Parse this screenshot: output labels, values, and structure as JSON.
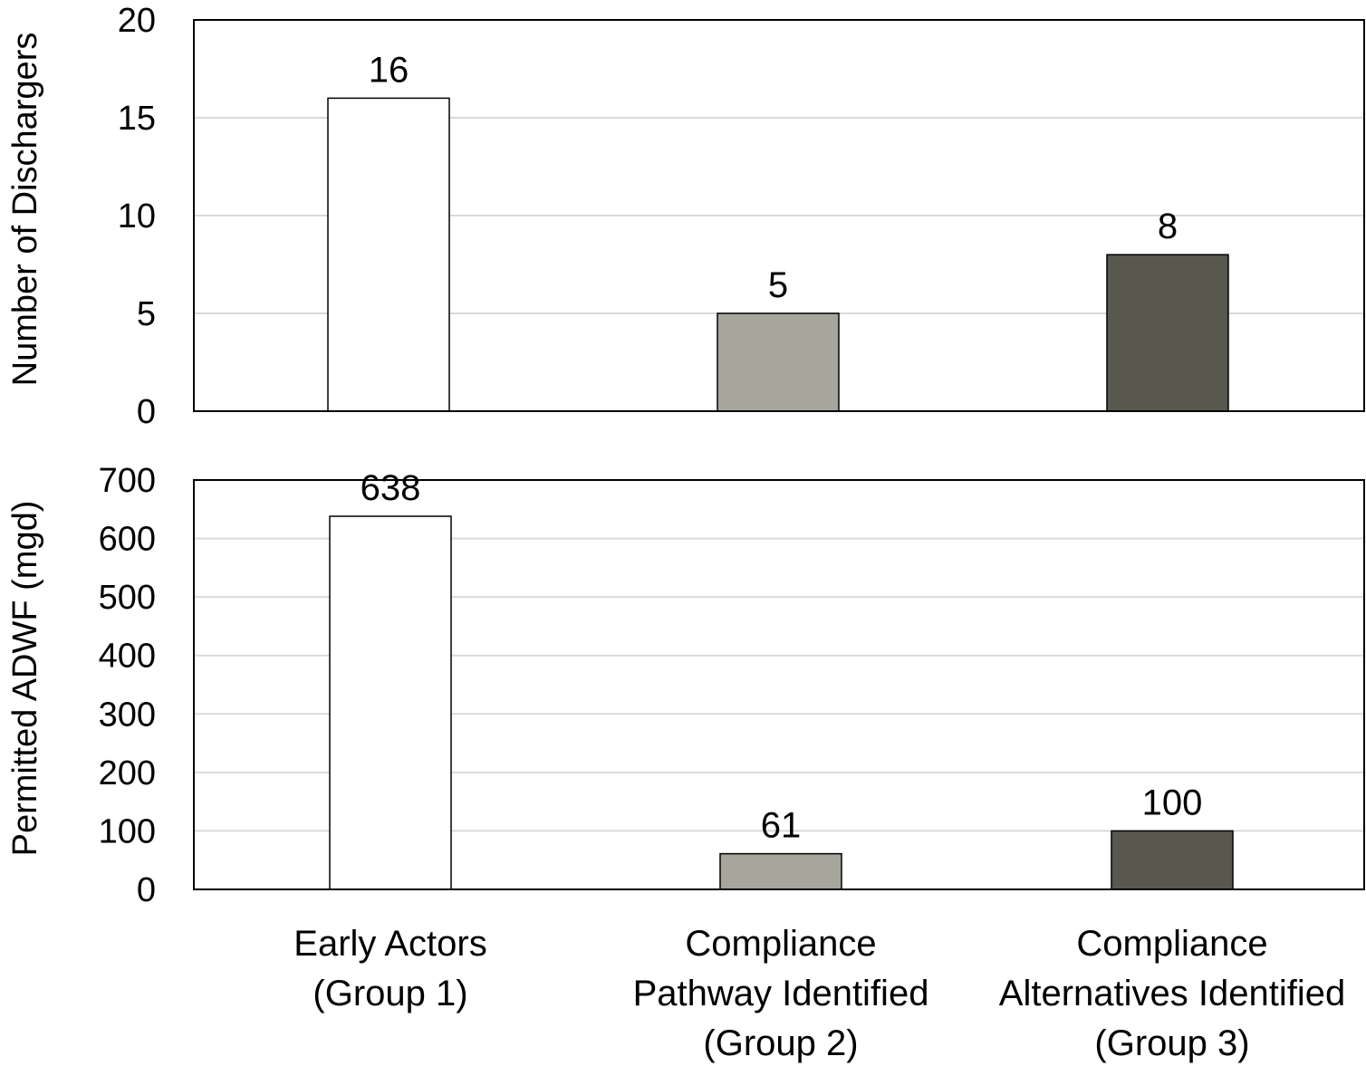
{
  "chart_data": [
    {
      "type": "bar",
      "categories": [
        "Early Actors (Group 1)",
        "Compliance Pathway Identified (Group 2)",
        "Compliance Alternatives Identified (Group 3)"
      ],
      "values": [
        16,
        5,
        8
      ],
      "data_labels": [
        "16",
        "5",
        "8"
      ],
      "ylabel": "Number of Dischargers",
      "ylim": [
        0,
        20
      ],
      "yticks": [
        0,
        5,
        10,
        15,
        20
      ],
      "grid": true,
      "bar_colors": [
        "#ffffff",
        "#a6a69c",
        "#58584e"
      ]
    },
    {
      "type": "bar",
      "categories": [
        "Early Actors (Group 1)",
        "Compliance Pathway Identified (Group 2)",
        "Compliance Alternatives Identified (Group 3)"
      ],
      "values": [
        638,
        61,
        100
      ],
      "data_labels": [
        "638",
        "61",
        "100"
      ],
      "ylabel": "Permitted ADWF (mgd)",
      "ylim": [
        0,
        700
      ],
      "yticks": [
        0,
        100,
        200,
        300,
        400,
        500,
        600,
        700
      ],
      "grid": true,
      "bar_colors": [
        "#ffffff",
        "#a6a69c",
        "#58584e"
      ]
    }
  ],
  "category_labels": [
    [
      "Early Actors",
      "(Group 1)"
    ],
    [
      "Compliance",
      "Pathway Identified",
      "(Group 2)"
    ],
    [
      "Compliance",
      "Alternatives Identified",
      "(Group 3)"
    ]
  ]
}
